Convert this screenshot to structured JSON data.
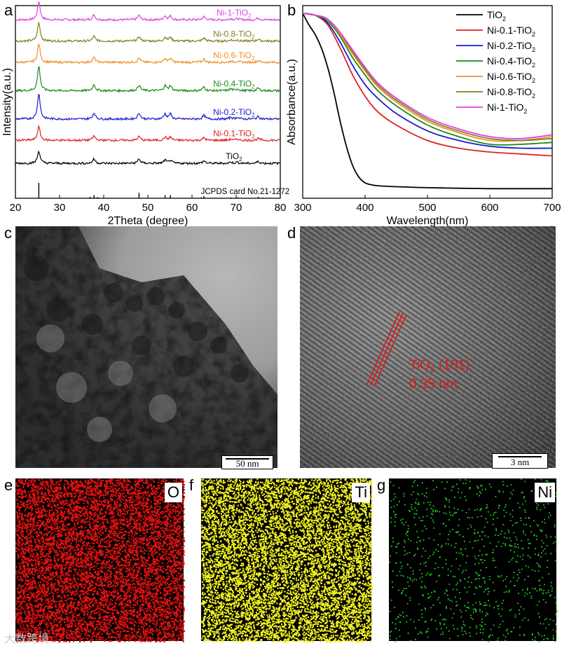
{
  "figure": {
    "panel_labels": {
      "a": "a",
      "b": "b",
      "c": "c",
      "d": "d",
      "e": "e",
      "f": "f",
      "g": "g"
    },
    "watermark": "大数跨境"
  },
  "chart_data": [
    {
      "id": "a",
      "type": "line",
      "title": "",
      "xlabel": "2Theta (degree)",
      "ylabel": "Intensity(a.u.)",
      "xlim": [
        20,
        80
      ],
      "xticks": [
        20,
        30,
        40,
        50,
        60,
        70,
        80
      ],
      "grid": false,
      "peaks": [
        25.3,
        37.8,
        48.0,
        53.9,
        55.1,
        62.7,
        68.8,
        70.3,
        75.0
      ],
      "series": [
        {
          "name": "Ni-1-TiO₂",
          "label_base": "Ni-1-TiO",
          "color": "#e040e8",
          "baseline": 0.92,
          "peak_heights": [
            0.3,
            0.08,
            0.07,
            0.06,
            0.06,
            0.05,
            0.02,
            0.02,
            0.03
          ]
        },
        {
          "name": "Ni-0.8-TiO₂",
          "label_base": "Ni-0.8-TiO",
          "color": "#808020",
          "baseline": 0.8,
          "peak_heights": [
            0.3,
            0.08,
            0.07,
            0.06,
            0.06,
            0.05,
            0.02,
            0.02,
            0.03
          ]
        },
        {
          "name": "Ni-0.6-TiO₂",
          "label_base": "Ni-0.6-TiO",
          "color": "#f0902a",
          "baseline": 0.68,
          "peak_heights": [
            0.3,
            0.08,
            0.07,
            0.06,
            0.06,
            0.05,
            0.02,
            0.02,
            0.03
          ]
        },
        {
          "name": "Ni-0.4-TiO₂",
          "label_base": "Ni-0.4-TiO",
          "color": "#1a8a1a",
          "baseline": 0.52,
          "peak_heights": [
            0.4,
            0.1,
            0.09,
            0.08,
            0.08,
            0.06,
            0.03,
            0.03,
            0.04
          ]
        },
        {
          "name": "Ni-0.2-TiO₂",
          "label_base": "Ni-0.2-TiO",
          "color": "#1a1acc",
          "baseline": 0.36,
          "peak_heights": [
            0.42,
            0.1,
            0.1,
            0.08,
            0.08,
            0.06,
            0.03,
            0.03,
            0.04
          ]
        },
        {
          "name": "Ni-0.1-TiO₂",
          "label_base": "Ni-0.1-TiO",
          "color": "#dd2222",
          "baseline": 0.24,
          "peak_heights": [
            0.22,
            0.07,
            0.06,
            0.05,
            0.05,
            0.04,
            0.02,
            0.02,
            0.03
          ]
        },
        {
          "name": "TiO₂",
          "label_base": "TiO",
          "color": "#000000",
          "baseline": 0.11,
          "peak_heights": [
            0.2,
            0.07,
            0.07,
            0.05,
            0.05,
            0.04,
            0.02,
            0.02,
            0.03
          ]
        }
      ],
      "reference": {
        "label": "JCPDS card No.21-1272",
        "positions": [
          25.3,
          36.9,
          37.8,
          38.6,
          48.0,
          53.9,
          55.1,
          62.1,
          62.7,
          68.8,
          70.3,
          75.0,
          76.0
        ],
        "heights": [
          1.0,
          0.1,
          0.2,
          0.08,
          0.35,
          0.2,
          0.2,
          0.06,
          0.14,
          0.06,
          0.06,
          0.1,
          0.04
        ]
      }
    },
    {
      "id": "b",
      "type": "line",
      "title": "",
      "xlabel": "Wavelength(nm)",
      "ylabel": "Absorbance(a.u.)",
      "xlim": [
        300,
        700
      ],
      "xticks": [
        300,
        400,
        500,
        600,
        700
      ],
      "grid": false,
      "legend_position": "top-right",
      "series": [
        {
          "name": "TiO₂",
          "label_base": "TiO",
          "color": "#000000",
          "x": [
            300,
            310,
            320,
            330,
            340,
            350,
            360,
            370,
            380,
            390,
            400,
            410,
            420,
            450,
            500,
            550,
            600,
            650,
            700
          ],
          "y": [
            0.96,
            0.9,
            0.85,
            0.78,
            0.68,
            0.55,
            0.4,
            0.27,
            0.17,
            0.11,
            0.08,
            0.07,
            0.065,
            0.06,
            0.055,
            0.052,
            0.05,
            0.05,
            0.05
          ]
        },
        {
          "name": "Ni-0.1-TiO₂",
          "label_base": "Ni-0.1-TiO",
          "color": "#dd2222",
          "x": [
            300,
            320,
            340,
            360,
            380,
            400,
            420,
            450,
            500,
            550,
            600,
            650,
            700
          ],
          "y": [
            0.96,
            0.95,
            0.9,
            0.78,
            0.64,
            0.53,
            0.45,
            0.38,
            0.3,
            0.26,
            0.24,
            0.23,
            0.22
          ]
        },
        {
          "name": "Ni-0.2-TiO₂",
          "label_base": "Ni-0.2-TiO",
          "color": "#1a1acc",
          "x": [
            300,
            320,
            340,
            360,
            380,
            400,
            420,
            450,
            500,
            550,
            600,
            650,
            700
          ],
          "y": [
            0.96,
            0.95,
            0.91,
            0.81,
            0.69,
            0.59,
            0.52,
            0.44,
            0.35,
            0.3,
            0.27,
            0.26,
            0.26
          ]
        },
        {
          "name": "Ni-0.4-TiO₂",
          "label_base": "Ni-0.4-TiO",
          "color": "#1a8a1a",
          "x": [
            300,
            320,
            340,
            360,
            380,
            400,
            420,
            450,
            500,
            550,
            600,
            650,
            700
          ],
          "y": [
            0.96,
            0.95,
            0.92,
            0.84,
            0.73,
            0.64,
            0.56,
            0.48,
            0.38,
            0.32,
            0.28,
            0.28,
            0.29
          ]
        },
        {
          "name": "Ni-0.6-TiO₂",
          "label_base": "Ni-0.6-TiO",
          "color": "#f0902a",
          "x": [
            300,
            320,
            340,
            360,
            380,
            400,
            420,
            450,
            500,
            550,
            600,
            650,
            700
          ],
          "y": [
            0.96,
            0.95,
            0.93,
            0.85,
            0.75,
            0.66,
            0.58,
            0.5,
            0.4,
            0.34,
            0.3,
            0.3,
            0.32
          ]
        },
        {
          "name": "Ni-0.8-TiO₂",
          "label_base": "Ni-0.8-TiO",
          "color": "#808020",
          "x": [
            300,
            320,
            340,
            360,
            380,
            400,
            420,
            450,
            500,
            550,
            600,
            650,
            700
          ],
          "y": [
            0.96,
            0.95,
            0.93,
            0.86,
            0.76,
            0.67,
            0.59,
            0.51,
            0.41,
            0.35,
            0.31,
            0.3,
            0.31
          ]
        },
        {
          "name": "Ni-1-TiO₂",
          "label_base": "Ni-1-TiO",
          "color": "#e040e8",
          "x": [
            300,
            320,
            340,
            360,
            380,
            400,
            420,
            450,
            500,
            550,
            600,
            650,
            700
          ],
          "y": [
            0.96,
            0.95,
            0.93,
            0.86,
            0.77,
            0.68,
            0.6,
            0.52,
            0.42,
            0.36,
            0.32,
            0.31,
            0.33
          ]
        }
      ]
    }
  ],
  "tem": {
    "scale_label": "50 nm"
  },
  "hrtem": {
    "annotation_formula_base": "TiO",
    "annotation_plane": " (101)",
    "annotation_spacing": "0.35 nm",
    "scale_label": "3 nm"
  },
  "eds_maps": [
    {
      "label": "O",
      "color": "#e01010"
    },
    {
      "label": "Ti",
      "color": "#f0f020"
    },
    {
      "label": "Ni",
      "color": "#22cc22"
    }
  ]
}
